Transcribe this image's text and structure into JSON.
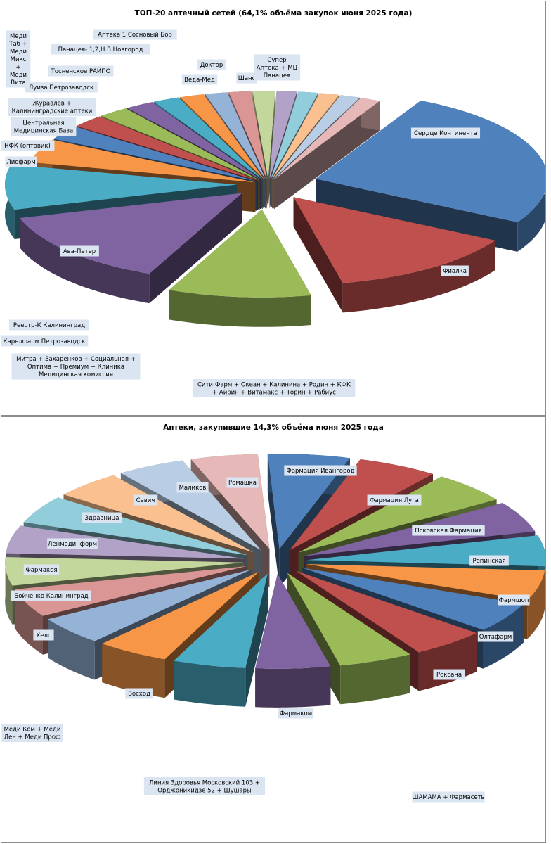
{
  "chart_data": [
    {
      "type": "pie",
      "title": "ТОП-20 аптечный сетей (64,1% объёма закупок июня 2025 года)",
      "series": [
        {
          "label": "Сердце Континента",
          "value": 16.5,
          "color": "#4f81bd"
        },
        {
          "label": "Фиалка",
          "value": 8.6,
          "color": "#c0504d"
        },
        {
          "label": "Сити-Фарм + Океан + Калинина + Родин + КФК + Айрин + Витамакс + Торин + Рабиус",
          "value": 6.4,
          "color": "#9bbb59"
        },
        {
          "label": "Митра + Захаренков + Социальная + Оптима + Премиум + Клиника Медицинская комиссия",
          "value": 8.9,
          "color": "#8064a2"
        },
        {
          "label": "Ава-Петер",
          "value": 5.3,
          "color": "#4bacc6"
        },
        {
          "label": "Карелфарм Петрозаводск",
          "value": 2.8,
          "color": "#f79646"
        },
        {
          "label": "Реестр-К Калининград",
          "value": 1.7,
          "color": "#4f81bd"
        },
        {
          "label": "",
          "value": 1.5,
          "color": "#c0504d"
        },
        {
          "label": "Лиофарм",
          "value": 1.4,
          "color": "#9bbb59"
        },
        {
          "label": "НФК (оптовик)",
          "value": 1.3,
          "color": "#8064a2"
        },
        {
          "label": "Центральная Медицинская База",
          "value": 1.2,
          "color": "#4bacc6"
        },
        {
          "label": "Журавлев + Калининградские аптеки",
          "value": 1.1,
          "color": "#f79646"
        },
        {
          "label": "Луиза Петрозаводск",
          "value": 1.0,
          "color": "#95b3d7"
        },
        {
          "label": "Меди Таб + Меди Микс + Меди Вита",
          "value": 1.0,
          "color": "#d99694"
        },
        {
          "label": "Тосненское РАЙПО",
          "value": 1.0,
          "color": "#c3d69b"
        },
        {
          "label": "Панацея- 1,2,Н В.Новгород",
          "value": 0.9,
          "color": "#b3a2c7"
        },
        {
          "label": "Аптека 1 Сосновый Бор",
          "value": 0.9,
          "color": "#92cddc"
        },
        {
          "label": "Веда-Мед",
          "value": 0.9,
          "color": "#fac090"
        },
        {
          "label": "Доктор",
          "value": 0.9,
          "color": "#b9cde5"
        },
        {
          "label": "Шанс",
          "value": 0.9,
          "color": "#e6b9b8"
        }
      ],
      "extra_label": "Супер Аптека + МЦ Панацея"
    },
    {
      "type": "pie",
      "title": "Аптеки, закупившие 14,3% объёма июня 2025 года",
      "series": [
        {
          "label": "Фармация Ивангород",
          "value": 5.5,
          "color": "#4f81bd"
        },
        {
          "label": "Фармация Луга",
          "value": 5.4,
          "color": "#c0504d"
        },
        {
          "label": "Псковская Фармация",
          "value": 5.3,
          "color": "#9bbb59"
        },
        {
          "label": "Репинская",
          "value": 5.2,
          "color": "#8064a2"
        },
        {
          "label": "Фармшоп",
          "value": 5.2,
          "color": "#4bacc6"
        },
        {
          "label": "Олтафарм",
          "value": 5.1,
          "color": "#f79646"
        },
        {
          "label": "Роксана",
          "value": 5.1,
          "color": "#4f81bd"
        },
        {
          "label": "ШАМАМА + Фармасеть",
          "value": 5.0,
          "color": "#c0504d"
        },
        {
          "label": "Фармаком",
          "value": 5.0,
          "color": "#9bbb59"
        },
        {
          "label": "Линия Здоровья Московский 103 + Орджоникидзе 52 + Шушары",
          "value": 5.0,
          "color": "#8064a2"
        },
        {
          "label": "Восход",
          "value": 4.9,
          "color": "#4bacc6"
        },
        {
          "label": "Меди Ком + Меди Лен + Меди Проф",
          "value": 4.9,
          "color": "#f79646"
        },
        {
          "label": "Хелс",
          "value": 4.8,
          "color": "#95b3d7"
        },
        {
          "label": "Бойченко Калининград",
          "value": 4.8,
          "color": "#d99694"
        },
        {
          "label": "Фармакея",
          "value": 4.8,
          "color": "#c3d69b"
        },
        {
          "label": "Ленмединформ",
          "value": 4.7,
          "color": "#b3a2c7"
        },
        {
          "label": "Здравница",
          "value": 4.7,
          "color": "#92cddc"
        },
        {
          "label": "Савич",
          "value": 4.6,
          "color": "#fac090"
        },
        {
          "label": "Маликов",
          "value": 4.6,
          "color": "#b9cde5"
        },
        {
          "label": "Ромашка",
          "value": 4.5,
          "color": "#e6b9b8"
        }
      ]
    }
  ]
}
